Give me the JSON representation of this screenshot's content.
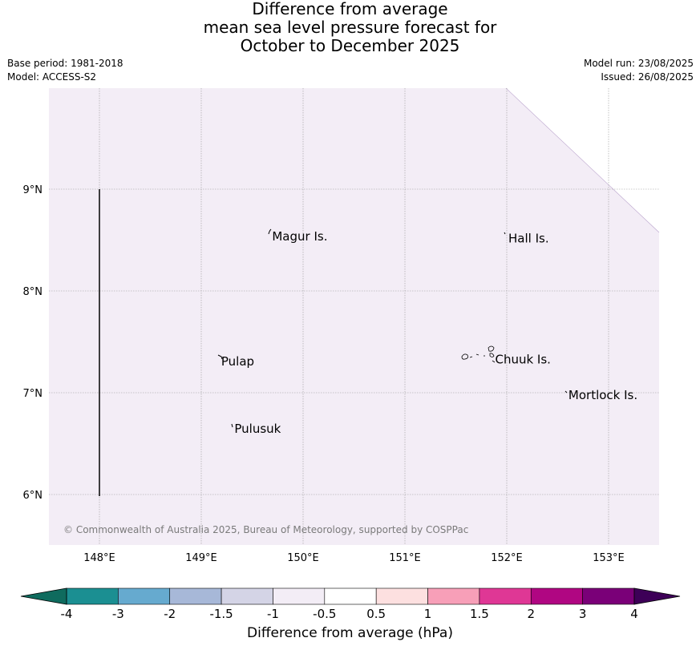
{
  "title": {
    "line1": "Difference from average",
    "line2": "mean sea level pressure forecast for",
    "line3": "October to December 2025"
  },
  "meta_left": {
    "base_period": "Base period: 1981-2018",
    "model": "Model: ACCESS-S2"
  },
  "meta_right": {
    "model_run": "Model run: 23/08/2025",
    "issued": "Issued: 26/08/2025"
  },
  "map": {
    "fill_color": "#f3edf6",
    "lon_ticks": [
      "148°E",
      "149°E",
      "150°E",
      "151°E",
      "152°E",
      "153°E"
    ],
    "lat_ticks": [
      "9°N",
      "8°N",
      "7°N",
      "6°N"
    ],
    "lon_values": [
      148,
      149,
      150,
      151,
      152,
      153
    ],
    "lat_values": [
      9,
      8,
      7,
      6
    ],
    "places": [
      {
        "name": "Magur Is.",
        "lon": 149.68,
        "lat": 8.56
      },
      {
        "name": "Hall Is.",
        "lon": 152.0,
        "lat": 8.54
      },
      {
        "name": "Pulap",
        "lon": 149.18,
        "lat": 7.33
      },
      {
        "name": "Chuuk Is.",
        "lon": 151.87,
        "lat": 7.35
      },
      {
        "name": "Mortlock Is.",
        "lon": 152.59,
        "lat": 7.0
      },
      {
        "name": "Pulusuk",
        "lon": 149.31,
        "lat": 6.67
      }
    ],
    "copyright": "© Commonwealth of Australia 2025, Bureau of Meteorology, supported by COSPPac"
  },
  "colorbar": {
    "label": "Difference from average (hPa)",
    "tick_labels": [
      "-4",
      "-3",
      "-2",
      "-1.5",
      "-1",
      "-0.5",
      "0.5",
      "1",
      "1.5",
      "2",
      "3",
      "4"
    ],
    "low_extend_color": "#0f6b5e",
    "high_extend_color": "#3d0057",
    "colors": [
      "#1b8f92",
      "#66aacf",
      "#a7b8d8",
      "#d4d4e6",
      "#f3edf6",
      "#ffffff",
      "#fde0e0",
      "#f79fb8",
      "#df3795",
      "#b00682",
      "#7a0078"
    ]
  }
}
